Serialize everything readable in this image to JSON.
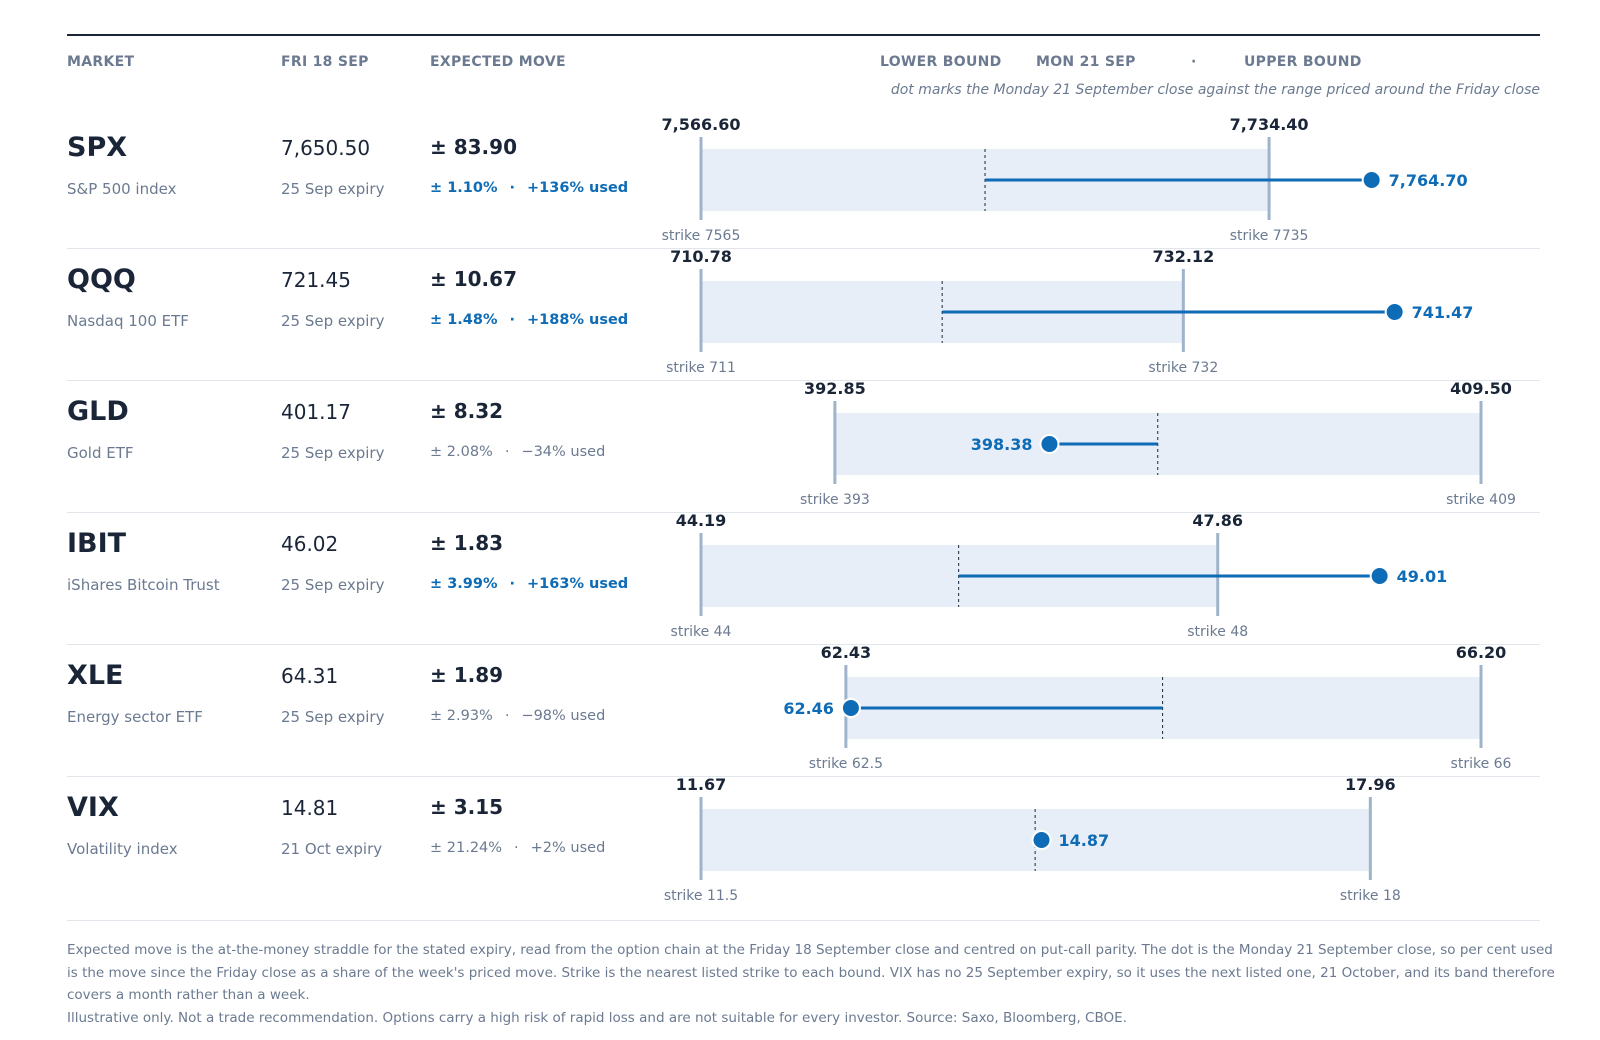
{
  "header": {
    "market": "MARKET",
    "fri": "FRI 18 SEP",
    "expected_move": "EXPECTED MOVE",
    "lower_bound": "LOWER BOUND",
    "mon": "MON 21 SEP",
    "dot": "·",
    "upper_bound": "UPPER BOUND",
    "subtitle": "dot marks the Monday 21 September close against the range priced around the Friday close"
  },
  "colors": {
    "band": "#e8eef8",
    "bound_line": "#9fb3cb",
    "accent": "#0e6bb5",
    "ink": "#1a2638",
    "muted": "#6b7a90"
  },
  "chart_data": {
    "type": "range-dot",
    "series": [
      {
        "ticker": "SPX",
        "description": "S&P 500 index",
        "friday_close": 7650.5,
        "friday_close_label": "7,650.50",
        "expiry": "25 Sep expiry",
        "expected_move": "± 83.90",
        "pct": "± 1.10%",
        "used": "+136% used",
        "highlight": true,
        "lower": 7566.6,
        "lower_label": "7,566.60",
        "upper": 7734.4,
        "upper_label": "7,734.40",
        "strike_low": "strike 7565",
        "strike_high": "strike 7735",
        "monday_close": 7764.7,
        "monday_label": "7,764.70",
        "axis_min": 7566.6,
        "axis_max": 7797.0
      },
      {
        "ticker": "QQQ",
        "description": "Nasdaq 100 ETF",
        "friday_close": 721.45,
        "friday_close_label": "721.45",
        "expiry": "25 Sep expiry",
        "expected_move": "± 10.67",
        "pct": "± 1.48%",
        "used": "+188% used",
        "highlight": true,
        "lower": 710.78,
        "lower_label": "710.78",
        "upper": 732.12,
        "upper_label": "732.12",
        "strike_low": "strike 711",
        "strike_high": "strike 732",
        "monday_close": 741.47,
        "monday_label": "741.47",
        "axis_min": 710.78,
        "axis_max": 745.29
      },
      {
        "ticker": "GLD",
        "description": "Gold ETF",
        "friday_close": 401.17,
        "friday_close_label": "401.17",
        "expiry": "25 Sep expiry",
        "expected_move": "± 8.32",
        "pct": "± 2.08%",
        "used": "−34% used",
        "highlight": false,
        "lower": 392.85,
        "lower_label": "392.85",
        "upper": 409.5,
        "upper_label": "409.50",
        "strike_low": "strike 393",
        "strike_high": "strike 409",
        "monday_close": 398.38,
        "monday_label": "398.38",
        "axis_min": 389.4,
        "axis_max": 409.5
      },
      {
        "ticker": "IBIT",
        "description": "iShares Bitcoin Trust",
        "friday_close": 46.02,
        "friday_close_label": "46.02",
        "expiry": "25 Sep expiry",
        "expected_move": "± 1.83",
        "pct": "± 3.99%",
        "used": "+163% used",
        "highlight": true,
        "lower": 44.19,
        "lower_label": "44.19",
        "upper": 47.86,
        "upper_label": "47.86",
        "strike_low": "strike 44",
        "strike_high": "strike 48",
        "monday_close": 49.01,
        "monday_label": "49.01",
        "axis_min": 44.19,
        "axis_max": 49.73
      },
      {
        "ticker": "XLE",
        "description": "Energy sector ETF",
        "friday_close": 64.31,
        "friday_close_label": "64.31",
        "expiry": "25 Sep expiry",
        "expected_move": "± 1.89",
        "pct": "± 2.93%",
        "used": "−98% used",
        "highlight": false,
        "lower": 62.43,
        "lower_label": "62.43",
        "upper": 66.2,
        "upper_label": "66.20",
        "strike_low": "strike 62.5",
        "strike_high": "strike 66",
        "monday_close": 62.46,
        "monday_label": "62.46",
        "axis_min": 61.57,
        "axis_max": 66.2
      },
      {
        "ticker": "VIX",
        "description": "Volatility index",
        "friday_close": 14.81,
        "friday_close_label": "14.81",
        "expiry": "21 Oct expiry",
        "expected_move": "± 3.15",
        "pct": "± 21.24%",
        "used": "+2% used",
        "highlight": false,
        "lower": 11.67,
        "lower_label": "11.67",
        "upper": 17.96,
        "upper_label": "17.96",
        "strike_low": "strike 11.5",
        "strike_high": "strike 18",
        "monday_close": 14.87,
        "monday_label": "14.87",
        "axis_min": 11.67,
        "axis_max": 19.0
      }
    ]
  },
  "footer": {
    "note": "Expected move is the at-the-money straddle for the stated expiry, read from the option chain at the Friday 18 September close and centred on put-call parity. The dot is the Monday 21 September close, so per cent used is the move since the Friday close as a share of the week's priced move. Strike is the nearest listed strike to each bound. VIX has no 25 September expiry, so it uses the next listed one, 21 October, and its band therefore covers a month rather than a week.",
    "disclaimer": "Illustrative only. Not a trade recommendation. Options carry a high risk of rapid loss and are not suitable for every investor. Source: Saxo, Bloomberg, CBOE."
  }
}
